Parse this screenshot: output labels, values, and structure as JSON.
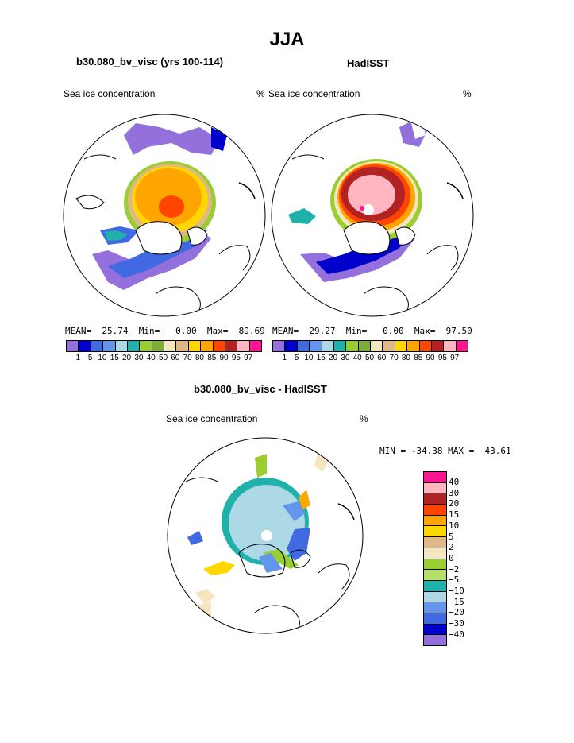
{
  "page": {
    "title": "JJA"
  },
  "panels": [
    {
      "id": "model",
      "title": "b30.080_bv_visc (yrs 100-114)",
      "variable": "Sea ice concentration",
      "units": "",
      "stats": {
        "mean_label": "MEAN=",
        "mean": "25.74",
        "min_label": "Min=",
        "min": "0.00",
        "max_label": "Max=",
        "max": "89.69"
      }
    },
    {
      "id": "obs",
      "title": "HadISST",
      "variable": "Sea ice concentration",
      "units_left": "%",
      "units": "%",
      "stats": {
        "mean_label": "MEAN=",
        "mean": "29.27",
        "min_label": "Min=",
        "min": "0.00",
        "max_label": "Max=",
        "max": "97.50"
      }
    },
    {
      "id": "diff",
      "title": "b30.080_bv_visc - HadISST",
      "variable": "Sea ice concentration",
      "units": "%",
      "minmax": {
        "min_label": "MIN =",
        "min": "-34.38",
        "max_label": "MAX =",
        "max": "43.61"
      }
    }
  ],
  "colorbar_levels": {
    "labels": [
      "1",
      "5",
      "10",
      "15",
      "20",
      "30",
      "40",
      "50",
      "60",
      "70",
      "80",
      "85",
      "90",
      "95",
      "97"
    ],
    "colors": [
      "#9370DB",
      "#0000CD",
      "#4169E1",
      "#6495ED",
      "#ADD8E6",
      "#20B2AA",
      "#9ACD32",
      "#7BAF3A",
      "#F5E6C0",
      "#DEB887",
      "#FFD700",
      "#FFA500",
      "#FF4500",
      "#B22222",
      "#FFB6C1",
      "#FF1493"
    ]
  },
  "diff_colorbar": {
    "labels": [
      "40",
      "30",
      "20",
      "15",
      "10",
      "5",
      "2",
      "0",
      "−2",
      "−5",
      "−10",
      "−15",
      "−20",
      "−30",
      "−40"
    ],
    "colors": [
      "#FF1493",
      "#FFB6C1",
      "#B22222",
      "#FF4500",
      "#FFA500",
      "#FFD700",
      "#DEB887",
      "#F5E6C0",
      "#9ACD32",
      "#B5E06A",
      "#20B2AA",
      "#ADD8E6",
      "#6495ED",
      "#4169E1",
      "#0000CD",
      "#9370DB"
    ]
  }
}
